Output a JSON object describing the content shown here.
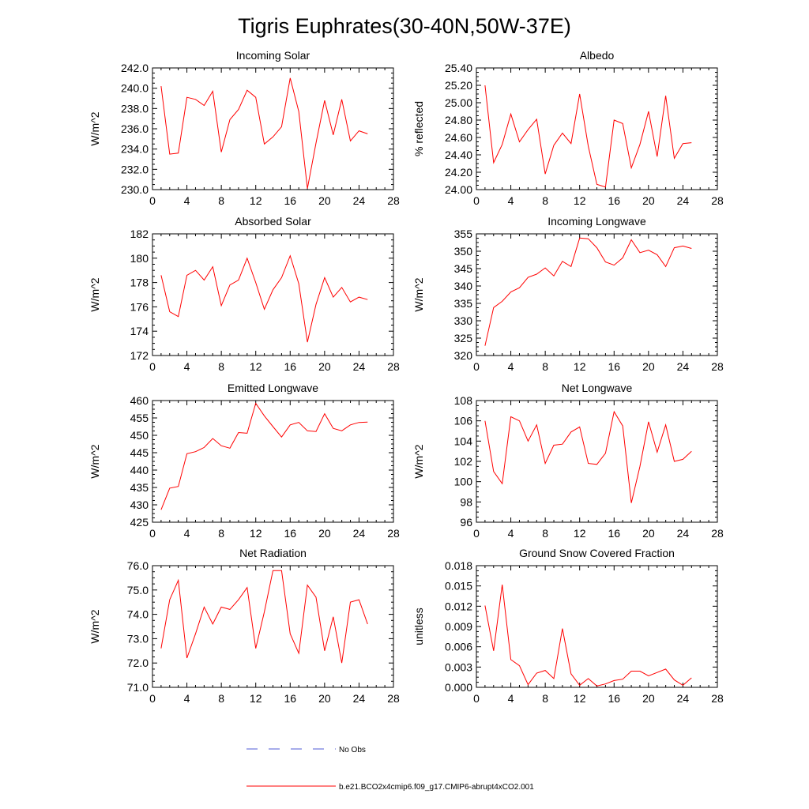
{
  "figure": {
    "title": "Tigris Euphrates(30-40N,50W-37E)"
  },
  "colors": {
    "series": "#ff0000",
    "no_obs": "#4f5bd5",
    "axis": "#000000"
  },
  "legend": {
    "no_obs_label": "No Obs",
    "run_label": "b.e21.BCO2x4cmip6.f09_g17.CMIP6-abrupt4xCO2.001"
  },
  "chart_data": [
    {
      "id": "incoming-solar",
      "type": "line",
      "title": "Incoming Solar",
      "xlabel": "",
      "ylabel": "W/m^2",
      "xlim": [
        0,
        28
      ],
      "ylim": [
        230,
        242
      ],
      "xticks": [
        "0",
        "4",
        "8",
        "12",
        "16",
        "20",
        "24",
        "28"
      ],
      "yticks": [
        "230.0",
        "232.0",
        "234.0",
        "236.0",
        "238.0",
        "240.0",
        "242.0"
      ],
      "x": [
        1,
        2,
        3,
        4,
        5,
        6,
        7,
        8,
        9,
        10,
        11,
        12,
        13,
        14,
        15,
        16,
        17,
        18,
        19,
        20,
        21,
        22,
        23,
        24,
        25
      ],
      "series": [
        {
          "name": "b.e21.BCO2x4cmip6.f09_g17.CMIP6-abrupt4xCO2.001",
          "values": [
            240.2,
            233.5,
            233.6,
            239.1,
            238.9,
            238.3,
            239.7,
            233.7,
            236.9,
            237.9,
            239.8,
            239.1,
            234.5,
            235.2,
            236.2,
            241.0,
            237.7,
            230.1,
            234.6,
            238.8,
            235.4,
            238.9,
            234.8,
            235.8,
            235.5
          ]
        }
      ]
    },
    {
      "id": "albedo",
      "type": "line",
      "title": "Albedo",
      "xlabel": "",
      "ylabel": "% reflected",
      "xlim": [
        0,
        28
      ],
      "ylim": [
        24.0,
        25.4
      ],
      "xticks": [
        "0",
        "4",
        "8",
        "12",
        "16",
        "20",
        "24",
        "28"
      ],
      "yticks": [
        "24.00",
        "24.20",
        "24.40",
        "24.60",
        "24.80",
        "25.00",
        "25.20",
        "25.40"
      ],
      "x": [
        1,
        2,
        3,
        4,
        5,
        6,
        7,
        8,
        9,
        10,
        11,
        12,
        13,
        14,
        15,
        16,
        17,
        18,
        19,
        20,
        21,
        22,
        23,
        24,
        25
      ],
      "series": [
        {
          "name": "b.e21.BCO2x4cmip6.f09_g17.CMIP6-abrupt4xCO2.001",
          "values": [
            25.2,
            24.31,
            24.52,
            24.87,
            24.55,
            24.69,
            24.81,
            24.18,
            24.51,
            24.65,
            24.53,
            25.1,
            24.5,
            24.06,
            24.03,
            24.8,
            24.76,
            24.25,
            24.52,
            24.9,
            24.38,
            25.08,
            24.36,
            24.53,
            24.54
          ]
        }
      ]
    },
    {
      "id": "absorbed-solar",
      "type": "line",
      "title": "Absorbed Solar",
      "xlabel": "",
      "ylabel": "W/m^2",
      "xlim": [
        0,
        28
      ],
      "ylim": [
        172,
        182
      ],
      "xticks": [
        "0",
        "4",
        "8",
        "12",
        "16",
        "20",
        "24",
        "28"
      ],
      "yticks": [
        "172",
        "174",
        "176",
        "178",
        "180",
        "182"
      ],
      "x": [
        1,
        2,
        3,
        4,
        5,
        6,
        7,
        8,
        9,
        10,
        11,
        12,
        13,
        14,
        15,
        16,
        17,
        18,
        19,
        20,
        21,
        22,
        23,
        24,
        25
      ],
      "series": [
        {
          "name": "b.e21.BCO2x4cmip6.f09_g17.CMIP6-abrupt4xCO2.001",
          "values": [
            178.6,
            175.6,
            175.2,
            178.6,
            179.0,
            178.2,
            179.3,
            176.1,
            177.8,
            178.2,
            180.0,
            178.0,
            175.8,
            177.4,
            178.4,
            180.2,
            177.9,
            173.1,
            176.2,
            178.4,
            176.8,
            177.6,
            176.4,
            176.8,
            176.6
          ]
        }
      ]
    },
    {
      "id": "incoming-longwave",
      "type": "line",
      "title": "Incoming Longwave",
      "xlabel": "",
      "ylabel": "W/m^2",
      "xlim": [
        0,
        28
      ],
      "ylim": [
        320,
        355
      ],
      "xticks": [
        "0",
        "4",
        "8",
        "12",
        "16",
        "20",
        "24",
        "28"
      ],
      "yticks": [
        "320",
        "325",
        "330",
        "335",
        "340",
        "345",
        "350",
        "355"
      ],
      "x": [
        1,
        2,
        3,
        4,
        5,
        6,
        7,
        8,
        9,
        10,
        11,
        12,
        13,
        14,
        15,
        16,
        17,
        18,
        19,
        20,
        21,
        22,
        23,
        24,
        25
      ],
      "series": [
        {
          "name": "b.e21.BCO2x4cmip6.f09_g17.CMIP6-abrupt4xCO2.001",
          "values": [
            322.8,
            333.8,
            335.6,
            338.3,
            339.5,
            342.5,
            343.4,
            345.2,
            342.9,
            347.1,
            345.6,
            353.8,
            353.6,
            351.0,
            346.9,
            346.0,
            348.1,
            353.3,
            349.6,
            350.3,
            349.0,
            345.6,
            351.0,
            351.5,
            350.8
          ]
        }
      ]
    },
    {
      "id": "emitted-longwave",
      "type": "line",
      "title": "Emitted Longwave",
      "xlabel": "",
      "ylabel": "W/m^2",
      "xlim": [
        0,
        28
      ],
      "ylim": [
        425,
        460
      ],
      "xticks": [
        "0",
        "4",
        "8",
        "12",
        "16",
        "20",
        "24",
        "28"
      ],
      "yticks": [
        "425",
        "430",
        "435",
        "440",
        "445",
        "450",
        "455",
        "460"
      ],
      "x": [
        1,
        2,
        3,
        4,
        5,
        6,
        7,
        8,
        9,
        10,
        11,
        12,
        13,
        14,
        15,
        16,
        17,
        18,
        19,
        20,
        21,
        22,
        23,
        24,
        25
      ],
      "series": [
        {
          "name": "b.e21.BCO2x4cmip6.f09_g17.CMIP6-abrupt4xCO2.001",
          "values": [
            428.6,
            434.8,
            435.3,
            444.7,
            445.3,
            446.5,
            449.1,
            447.0,
            446.3,
            450.8,
            450.6,
            459.2,
            455.6,
            452.5,
            449.5,
            453.0,
            453.7,
            451.3,
            451.1,
            456.2,
            452.0,
            451.3,
            453.0,
            453.7,
            453.8
          ]
        }
      ]
    },
    {
      "id": "net-longwave",
      "type": "line",
      "title": "Net Longwave",
      "xlabel": "",
      "ylabel": "W/m^2",
      "xlim": [
        0,
        28
      ],
      "ylim": [
        96,
        108
      ],
      "xticks": [
        "0",
        "4",
        "8",
        "12",
        "16",
        "20",
        "24",
        "28"
      ],
      "yticks": [
        "96",
        "98",
        "100",
        "102",
        "104",
        "106",
        "108"
      ],
      "x": [
        1,
        2,
        3,
        4,
        5,
        6,
        7,
        8,
        9,
        10,
        11,
        12,
        13,
        14,
        15,
        16,
        17,
        18,
        19,
        20,
        21,
        22,
        23,
        24,
        25
      ],
      "series": [
        {
          "name": "b.e21.BCO2x4cmip6.f09_g17.CMIP6-abrupt4xCO2.001",
          "values": [
            106.0,
            101.0,
            99.8,
            106.4,
            106.0,
            104.0,
            105.6,
            101.8,
            103.6,
            103.7,
            104.9,
            105.4,
            101.8,
            101.7,
            102.8,
            106.9,
            105.5,
            97.9,
            101.5,
            105.9,
            102.9,
            105.6,
            102.0,
            102.2,
            103.0
          ]
        }
      ]
    },
    {
      "id": "net-radiation",
      "type": "line",
      "title": "Net Radiation",
      "xlabel": "",
      "ylabel": "W/m^2",
      "xlim": [
        0,
        28
      ],
      "ylim": [
        71,
        76
      ],
      "xticks": [
        "0",
        "4",
        "8",
        "12",
        "16",
        "20",
        "24",
        "28"
      ],
      "yticks": [
        "71.0",
        "72.0",
        "73.0",
        "74.0",
        "75.0",
        "76.0"
      ],
      "x": [
        1,
        2,
        3,
        4,
        5,
        6,
        7,
        8,
        9,
        10,
        11,
        12,
        13,
        14,
        15,
        16,
        17,
        18,
        19,
        20,
        21,
        22,
        23,
        24,
        25
      ],
      "series": [
        {
          "name": "b.e21.BCO2x4cmip6.f09_g17.CMIP6-abrupt4xCO2.001",
          "values": [
            72.6,
            74.6,
            75.4,
            72.2,
            73.2,
            74.3,
            73.6,
            74.3,
            74.2,
            74.6,
            75.1,
            72.6,
            74.1,
            75.8,
            75.8,
            73.2,
            72.4,
            75.2,
            74.7,
            72.5,
            73.9,
            72.0,
            74.5,
            74.6,
            73.6
          ]
        }
      ]
    },
    {
      "id": "ground-snow-covered-fraction",
      "type": "line",
      "title": "Ground Snow Covered Fraction",
      "xlabel": "",
      "ylabel": "unitless",
      "xlim": [
        0,
        28
      ],
      "ylim": [
        0,
        0.018
      ],
      "xticks": [
        "0",
        "4",
        "8",
        "12",
        "16",
        "20",
        "24",
        "28"
      ],
      "yticks": [
        "0.000",
        "0.003",
        "0.006",
        "0.009",
        "0.012",
        "0.015",
        "0.018"
      ],
      "x": [
        1,
        2,
        3,
        4,
        5,
        6,
        7,
        8,
        9,
        10,
        11,
        12,
        13,
        14,
        15,
        16,
        17,
        18,
        19,
        20,
        21,
        22,
        23,
        24,
        25
      ],
      "series": [
        {
          "name": "b.e21.BCO2x4cmip6.f09_g17.CMIP6-abrupt4xCO2.001",
          "values": [
            0.0121,
            0.0054,
            0.0152,
            0.0041,
            0.0032,
            0.0004,
            0.0021,
            0.0025,
            0.0013,
            0.0087,
            0.002,
            0.0003,
            0.0013,
            0.0002,
            0.0005,
            0.001,
            0.0012,
            0.0024,
            0.0024,
            0.0017,
            0.0022,
            0.0027,
            0.0011,
            0.0003,
            0.0014
          ]
        }
      ]
    }
  ]
}
